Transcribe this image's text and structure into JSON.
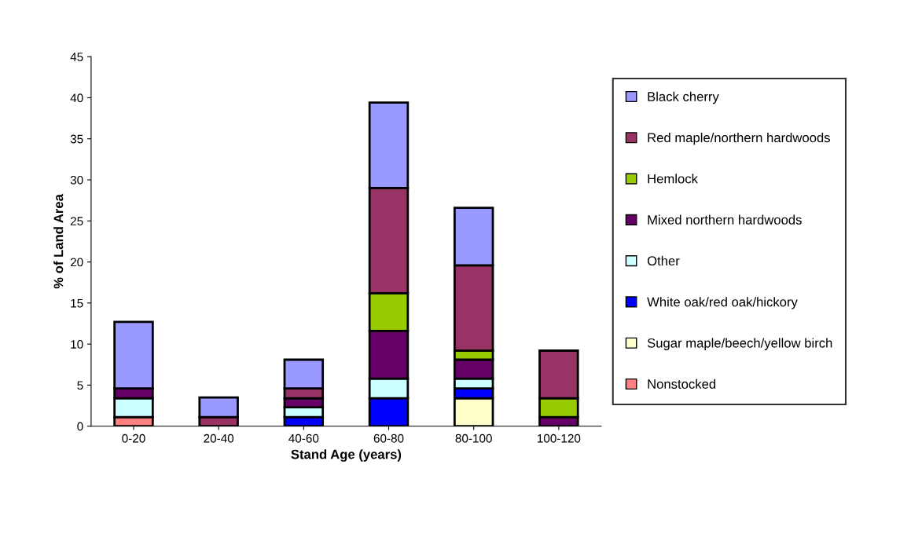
{
  "chart_data": {
    "type": "bar",
    "stacked": true,
    "xlabel": "Stand Age (years)",
    "ylabel": "% of Land Area",
    "categories": [
      "0-20",
      "20-40",
      "40-60",
      "60-80",
      "80-100",
      "100-120"
    ],
    "ylim": [
      0,
      45
    ],
    "yticks": [
      0,
      5,
      10,
      15,
      20,
      25,
      30,
      35,
      40,
      45
    ],
    "grid": false,
    "legend": "right",
    "series": [
      {
        "name": "Nonstocked",
        "color": "#ff8080",
        "values": [
          1.1,
          0,
          0,
          0,
          0,
          0
        ]
      },
      {
        "name": "Sugar maple/beech/yellow birch",
        "color": "#ffffcc",
        "values": [
          0,
          0,
          0,
          0,
          3.4,
          0
        ]
      },
      {
        "name": "White oak/red oak/hickory",
        "color": "#0000ff",
        "values": [
          0,
          0,
          1.1,
          3.4,
          1.2,
          0
        ]
      },
      {
        "name": "Other",
        "color": "#ccffff",
        "values": [
          2.3,
          0,
          1.2,
          2.4,
          1.2,
          0
        ]
      },
      {
        "name": "Mixed northern hardwoods",
        "color": "#660066",
        "values": [
          1.2,
          0,
          1.1,
          5.8,
          2.3,
          1.1
        ]
      },
      {
        "name": "Hemlock",
        "color": "#99cc00",
        "values": [
          0,
          0,
          0,
          4.6,
          1.1,
          2.3
        ]
      },
      {
        "name": "Red maple/northern hardwoods",
        "color": "#993366",
        "values": [
          0,
          1.1,
          1.2,
          12.8,
          10.4,
          5.8
        ]
      },
      {
        "name": "Black cherry",
        "color": "#9999ff",
        "values": [
          8.1,
          2.4,
          3.5,
          10.4,
          7.0,
          0
        ]
      }
    ]
  }
}
